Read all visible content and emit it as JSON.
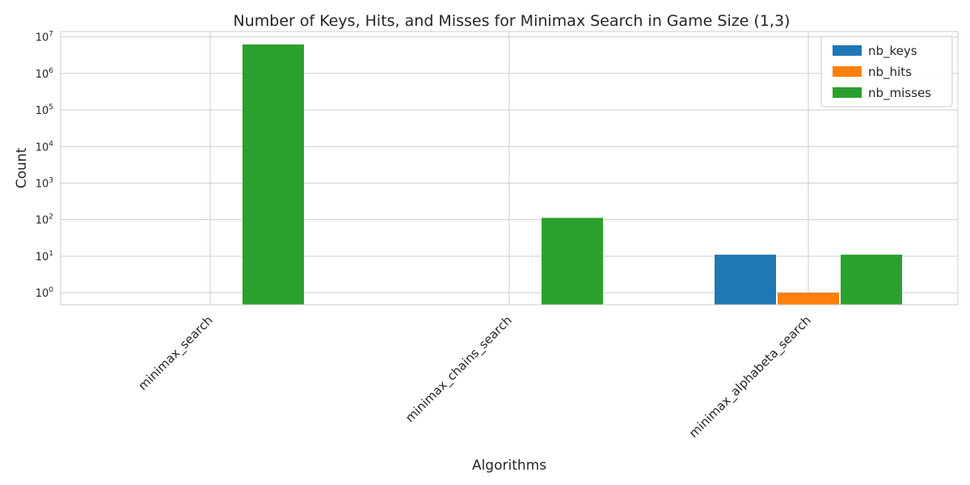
{
  "chart_data": {
    "type": "bar",
    "title": "Number of Keys, Hits, and Misses for Minimax Search in Game Size (1,3)",
    "xlabel": "Algorithms",
    "ylabel": "Count",
    "yscale": "log",
    "ylim": [
      0.47,
      14000000
    ],
    "yticks": [
      {
        "value": 1,
        "base": "10",
        "exp": "0"
      },
      {
        "value": 10,
        "base": "10",
        "exp": "1"
      },
      {
        "value": 100,
        "base": "10",
        "exp": "2"
      },
      {
        "value": 1000,
        "base": "10",
        "exp": "3"
      },
      {
        "value": 10000,
        "base": "10",
        "exp": "4"
      },
      {
        "value": 100000,
        "base": "10",
        "exp": "5"
      },
      {
        "value": 1000000,
        "base": "10",
        "exp": "6"
      },
      {
        "value": 10000000,
        "base": "10",
        "exp": "7"
      }
    ],
    "categories": [
      "minimax_search",
      "minimax_chains_search",
      "minimax_alphabeta_search"
    ],
    "series": [
      {
        "name": "nb_keys",
        "color": "#1f77b4",
        "values": [
          0,
          0,
          11
        ]
      },
      {
        "name": "nb_hits",
        "color": "#ff7f0e",
        "values": [
          0,
          0,
          1
        ]
      },
      {
        "name": "nb_misses",
        "color": "#2ca02c",
        "values": [
          6200000,
          112,
          11
        ]
      }
    ],
    "grid": true,
    "legend_position": "top-right"
  }
}
